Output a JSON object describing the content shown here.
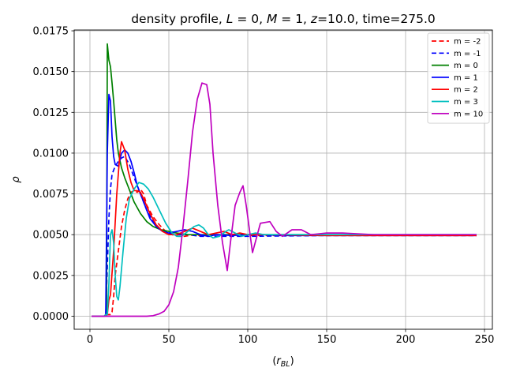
{
  "chart_data": {
    "type": "line",
    "title": "density profile, L = 0, M = 1, z=10.0, time=275.0",
    "xlabel": "(r_BL)",
    "ylabel": "ρ",
    "xlim": [
      -10,
      255
    ],
    "ylim": [
      -0.0008,
      0.01755
    ],
    "x_ticks": [
      0,
      50,
      100,
      150,
      200,
      250
    ],
    "y_ticks": [
      0.0,
      0.0025,
      0.005,
      0.0075,
      0.01,
      0.0125,
      0.015,
      0.0175
    ],
    "x_tick_labels": [
      "0",
      "50",
      "100",
      "150",
      "200",
      "250"
    ],
    "y_tick_labels": [
      "0.0000",
      "0.0025",
      "0.0050",
      "0.0075",
      "0.0100",
      "0.0125",
      "0.0150",
      "0.0175"
    ],
    "grid": true,
    "legend_position": "top-right",
    "series": [
      {
        "name": "m = -2",
        "color": "#ff0000",
        "dash": "dashed",
        "points": [
          [
            1,
            0
          ],
          [
            9,
            0
          ],
          [
            10,
            0.0001
          ],
          [
            11,
            0.0001
          ],
          [
            13,
            0.0001
          ],
          [
            14,
            0.00025
          ],
          [
            15,
            0.0012
          ],
          [
            16,
            0.0025
          ],
          [
            18,
            0.004
          ],
          [
            20,
            0.0055
          ],
          [
            22,
            0.0065
          ],
          [
            24,
            0.0072
          ],
          [
            26,
            0.0076
          ],
          [
            28,
            0.0077
          ],
          [
            30,
            0.0076
          ],
          [
            32,
            0.0078
          ],
          [
            34,
            0.0075
          ],
          [
            36,
            0.0068
          ],
          [
            40,
            0.0061
          ],
          [
            44,
            0.0056
          ],
          [
            48,
            0.0052
          ],
          [
            52,
            0.005
          ],
          [
            56,
            0.0049
          ],
          [
            60,
            0.0049
          ],
          [
            66,
            0.005
          ],
          [
            72,
            0.0049
          ],
          [
            80,
            0.005
          ],
          [
            90,
            0.005
          ],
          [
            100,
            0.00495
          ],
          [
            110,
            0.00495
          ],
          [
            120,
            0.00495
          ],
          [
            150,
            0.00495
          ],
          [
            200,
            0.00495
          ],
          [
            245,
            0.00495
          ]
        ]
      },
      {
        "name": "m = -1",
        "color": "#0000ff",
        "dash": "dashed",
        "points": [
          [
            1,
            0
          ],
          [
            9,
            0
          ],
          [
            10,
            0.0001
          ],
          [
            11,
            0.003
          ],
          [
            12,
            0.006
          ],
          [
            13,
            0.0078
          ],
          [
            14,
            0.0087
          ],
          [
            16,
            0.0092
          ],
          [
            18,
            0.0095
          ],
          [
            20,
            0.0097
          ],
          [
            22,
            0.0098
          ],
          [
            25,
            0.0093
          ],
          [
            28,
            0.0085
          ],
          [
            32,
            0.0075
          ],
          [
            36,
            0.0065
          ],
          [
            40,
            0.0058
          ],
          [
            45,
            0.0053
          ],
          [
            50,
            0.0051
          ],
          [
            55,
            0.005
          ],
          [
            62,
            0.005
          ],
          [
            70,
            0.0049
          ],
          [
            80,
            0.0049
          ],
          [
            100,
            0.0049
          ],
          [
            150,
            0.00495
          ],
          [
            200,
            0.00495
          ],
          [
            245,
            0.00495
          ]
        ]
      },
      {
        "name": "m = 0",
        "color": "#008000",
        "dash": "solid",
        "points": [
          [
            1,
            0
          ],
          [
            9,
            0
          ],
          [
            10.5,
            0.0001
          ],
          [
            11,
            0.0167
          ],
          [
            12,
            0.0157
          ],
          [
            13,
            0.0153
          ],
          [
            14,
            0.0143
          ],
          [
            15,
            0.0132
          ],
          [
            16,
            0.012
          ],
          [
            17,
            0.0108
          ],
          [
            18,
            0.01
          ],
          [
            20,
            0.0091
          ],
          [
            22,
            0.0085
          ],
          [
            24,
            0.008
          ],
          [
            26,
            0.0075
          ],
          [
            28,
            0.007
          ],
          [
            32,
            0.0063
          ],
          [
            36,
            0.0058
          ],
          [
            40,
            0.0055
          ],
          [
            45,
            0.0053
          ],
          [
            50,
            0.0052
          ],
          [
            55,
            0.0051
          ],
          [
            62,
            0.005
          ],
          [
            70,
            0.005
          ],
          [
            80,
            0.005
          ],
          [
            100,
            0.005
          ],
          [
            150,
            0.005
          ],
          [
            200,
            0.005
          ],
          [
            245,
            0.005
          ]
        ]
      },
      {
        "name": "m = 1",
        "color": "#0000ff",
        "dash": "solid",
        "points": [
          [
            1,
            0
          ],
          [
            9,
            0
          ],
          [
            10,
            0.0001
          ],
          [
            11,
            0.01
          ],
          [
            12,
            0.0136
          ],
          [
            13,
            0.0132
          ],
          [
            14,
            0.011
          ],
          [
            15,
            0.0098
          ],
          [
            16,
            0.0093
          ],
          [
            18,
            0.0092
          ],
          [
            20,
            0.01
          ],
          [
            22,
            0.0102
          ],
          [
            24,
            0.01
          ],
          [
            26,
            0.0095
          ],
          [
            28,
            0.0088
          ],
          [
            30,
            0.008
          ],
          [
            34,
            0.007
          ],
          [
            38,
            0.006
          ],
          [
            42,
            0.0055
          ],
          [
            46,
            0.0052
          ],
          [
            50,
            0.0051
          ],
          [
            55,
            0.0052
          ],
          [
            60,
            0.0053
          ],
          [
            65,
            0.0052
          ],
          [
            70,
            0.005
          ],
          [
            75,
            0.0049
          ],
          [
            80,
            0.005
          ],
          [
            90,
            0.00495
          ],
          [
            100,
            0.005
          ],
          [
            110,
            0.005
          ],
          [
            120,
            0.00495
          ],
          [
            150,
            0.00495
          ],
          [
            200,
            0.00495
          ],
          [
            245,
            0.00495
          ]
        ]
      },
      {
        "name": "m = 2",
        "color": "#ff0000",
        "dash": "solid",
        "points": [
          [
            1,
            0
          ],
          [
            9,
            0
          ],
          [
            10,
            0.0001
          ],
          [
            11,
            0.0001
          ],
          [
            12,
            0.001
          ],
          [
            13,
            0.0013
          ],
          [
            15,
            0.004
          ],
          [
            17,
            0.0075
          ],
          [
            19,
            0.01
          ],
          [
            20,
            0.0107
          ],
          [
            22,
            0.0102
          ],
          [
            24,
            0.009
          ],
          [
            26,
            0.0082
          ],
          [
            28,
            0.0077
          ],
          [
            30,
            0.0077
          ],
          [
            32,
            0.0076
          ],
          [
            34,
            0.0072
          ],
          [
            38,
            0.0063
          ],
          [
            42,
            0.0056
          ],
          [
            46,
            0.0052
          ],
          [
            50,
            0.005
          ],
          [
            55,
            0.005
          ],
          [
            60,
            0.0052
          ],
          [
            65,
            0.0054
          ],
          [
            70,
            0.0052
          ],
          [
            75,
            0.005
          ],
          [
            80,
            0.0051
          ],
          [
            85,
            0.0052
          ],
          [
            90,
            0.005
          ],
          [
            95,
            0.0051
          ],
          [
            100,
            0.005
          ],
          [
            110,
            0.005
          ],
          [
            150,
            0.00495
          ],
          [
            200,
            0.00495
          ],
          [
            245,
            0.00495
          ]
        ]
      },
      {
        "name": "m = 3",
        "color": "#00bfbf",
        "dash": "solid",
        "points": [
          [
            1,
            0
          ],
          [
            9,
            0
          ],
          [
            10,
            0.0001
          ],
          [
            11,
            0.0001
          ],
          [
            12,
            0.002
          ],
          [
            13,
            0.005
          ],
          [
            14,
            0.0053
          ],
          [
            15,
            0.0045
          ],
          [
            16,
            0.0025
          ],
          [
            17,
            0.0012
          ],
          [
            18,
            0.001
          ],
          [
            19,
            0.0018
          ],
          [
            21,
            0.004
          ],
          [
            23,
            0.006
          ],
          [
            25,
            0.0072
          ],
          [
            28,
            0.0078
          ],
          [
            31,
            0.0082
          ],
          [
            34,
            0.0081
          ],
          [
            37,
            0.0078
          ],
          [
            40,
            0.0073
          ],
          [
            44,
            0.0065
          ],
          [
            48,
            0.0057
          ],
          [
            52,
            0.0051
          ],
          [
            55,
            0.0049
          ],
          [
            58,
            0.0049
          ],
          [
            62,
            0.0052
          ],
          [
            66,
            0.0055
          ],
          [
            69,
            0.0056
          ],
          [
            72,
            0.0054
          ],
          [
            75,
            0.005
          ],
          [
            78,
            0.0048
          ],
          [
            82,
            0.0049
          ],
          [
            86,
            0.0052
          ],
          [
            88,
            0.0053
          ],
          [
            92,
            0.0051
          ],
          [
            96,
            0.0049
          ],
          [
            100,
            0.005
          ],
          [
            105,
            0.0051
          ],
          [
            110,
            0.005
          ],
          [
            120,
            0.005
          ],
          [
            150,
            0.005
          ],
          [
            200,
            0.005
          ],
          [
            245,
            0.005
          ]
        ]
      },
      {
        "name": "m = 10",
        "color": "#bf00bf",
        "dash": "solid",
        "points": [
          [
            1,
            0
          ],
          [
            36,
            0
          ],
          [
            40,
            3e-05
          ],
          [
            44,
            0.00015
          ],
          [
            47,
            0.0003
          ],
          [
            50,
            0.0007
          ],
          [
            53,
            0.0015
          ],
          [
            56,
            0.003
          ],
          [
            59,
            0.0055
          ],
          [
            62,
            0.0083
          ],
          [
            65,
            0.0113
          ],
          [
            68,
            0.0133
          ],
          [
            71,
            0.0143
          ],
          [
            74,
            0.0142
          ],
          [
            76,
            0.013
          ],
          [
            78,
            0.01
          ],
          [
            81,
            0.0068
          ],
          [
            84,
            0.0045
          ],
          [
            87,
            0.0028
          ],
          [
            89,
            0.0045
          ],
          [
            92,
            0.0068
          ],
          [
            95,
            0.0076
          ],
          [
            97,
            0.008
          ],
          [
            99,
            0.0068
          ],
          [
            103,
            0.0039
          ],
          [
            108,
            0.0057
          ],
          [
            114,
            0.0058
          ],
          [
            118,
            0.0052
          ],
          [
            122,
            0.0049
          ],
          [
            128,
            0.0053
          ],
          [
            134,
            0.0053
          ],
          [
            140,
            0.005
          ],
          [
            150,
            0.0051
          ],
          [
            160,
            0.0051
          ],
          [
            180,
            0.005
          ],
          [
            200,
            0.005
          ],
          [
            245,
            0.005
          ]
        ]
      }
    ]
  }
}
